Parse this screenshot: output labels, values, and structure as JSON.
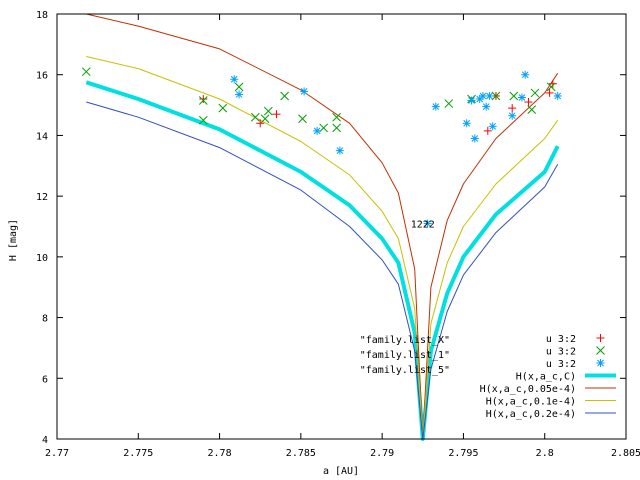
{
  "chart_data": {
    "type": "scatter",
    "title": "",
    "xlabel": "a [AU]",
    "ylabel": "H [mag]",
    "xlim": [
      2.77,
      2.805
    ],
    "ylim": [
      4,
      18
    ],
    "xticks": [
      2.77,
      2.775,
      2.78,
      2.785,
      2.79,
      2.795,
      2.8,
      2.805
    ],
    "xtick_labels": [
      "2.77",
      "2.775",
      "2.78",
      "2.785",
      "2.79",
      "2.795",
      "2.8",
      "2.805"
    ],
    "yticks": [
      4,
      6,
      8,
      10,
      12,
      14,
      16,
      18
    ],
    "ytick_labels": [
      "4",
      "6",
      "8",
      "10",
      "12",
      "14",
      "16",
      "18"
    ],
    "grid": false,
    "legend_position": "bottom-right",
    "annotations": [
      {
        "text": "1222",
        "x": 2.7925,
        "y": 11.1
      },
      {
        "text": "\"family.list_X\"",
        "x": 2.7914,
        "y": 7.3
      },
      {
        "text": "\"family.list_1\"",
        "x": 2.7914,
        "y": 6.8
      },
      {
        "text": "\"family.list_5\"",
        "x": 2.7914,
        "y": 6.3
      }
    ],
    "series": [
      {
        "name": "u 3:2",
        "kind": "points",
        "marker": "plus",
        "color": "#ff0000",
        "points": [
          [
            2.779,
            15.2
          ],
          [
            2.7825,
            14.4
          ],
          [
            2.7835,
            14.7
          ],
          [
            2.7965,
            14.15
          ],
          [
            2.798,
            14.9
          ],
          [
            2.799,
            15.1
          ],
          [
            2.8003,
            15.4
          ],
          [
            2.8005,
            15.7
          ],
          [
            2.797,
            15.3
          ]
        ]
      },
      {
        "name": "u 3:2",
        "kind": "points",
        "marker": "cross",
        "color": "#00a000",
        "points": [
          [
            2.7718,
            16.1
          ],
          [
            2.779,
            15.15
          ],
          [
            2.779,
            14.5
          ],
          [
            2.7802,
            14.9
          ],
          [
            2.7812,
            15.6
          ],
          [
            2.7822,
            14.6
          ],
          [
            2.7828,
            14.55
          ],
          [
            2.783,
            14.8
          ],
          [
            2.784,
            15.3
          ],
          [
            2.7851,
            14.55
          ],
          [
            2.7864,
            14.25
          ],
          [
            2.7872,
            14.6
          ],
          [
            2.7872,
            14.25
          ],
          [
            2.7941,
            15.05
          ],
          [
            2.7955,
            15.2
          ],
          [
            2.797,
            15.3
          ],
          [
            2.7981,
            15.3
          ],
          [
            2.7992,
            14.85
          ],
          [
            2.7994,
            15.4
          ],
          [
            2.8004,
            15.6
          ]
        ]
      },
      {
        "name": "u 3:2",
        "kind": "points",
        "marker": "star",
        "color": "#00a0ff",
        "points": [
          [
            2.7809,
            15.85
          ],
          [
            2.7812,
            15.35
          ],
          [
            2.7852,
            15.45
          ],
          [
            2.786,
            14.15
          ],
          [
            2.7874,
            13.5
          ],
          [
            2.7933,
            14.95
          ],
          [
            2.7952,
            14.4
          ],
          [
            2.7955,
            15.15
          ],
          [
            2.7957,
            13.9
          ],
          [
            2.796,
            15.2
          ],
          [
            2.7962,
            15.3
          ],
          [
            2.7964,
            14.95
          ],
          [
            2.7966,
            15.3
          ],
          [
            2.7968,
            14.3
          ],
          [
            2.798,
            14.65
          ],
          [
            2.7986,
            15.25
          ],
          [
            2.7988,
            16.0
          ],
          [
            2.8008,
            15.3
          ],
          [
            2.7928,
            11.1
          ]
        ]
      },
      {
        "name": "H(x,a_c,C)",
        "kind": "curve",
        "color": "#00e0e0",
        "width": 4,
        "points": [
          [
            2.7718,
            15.75
          ],
          [
            2.775,
            15.2
          ],
          [
            2.78,
            14.2
          ],
          [
            2.785,
            12.8
          ],
          [
            2.788,
            11.7
          ],
          [
            2.79,
            10.6
          ],
          [
            2.791,
            9.8
          ],
          [
            2.792,
            7.5
          ],
          [
            2.7925,
            4.0
          ],
          [
            2.793,
            6.9
          ],
          [
            2.794,
            8.8
          ],
          [
            2.795,
            10.0
          ],
          [
            2.797,
            11.4
          ],
          [
            2.8,
            12.8
          ],
          [
            2.8008,
            13.65
          ]
        ]
      },
      {
        "name": "H(x,a_c,0.05e-4)",
        "kind": "curve",
        "color": "#c03000",
        "width": 1,
        "points": [
          [
            2.7718,
            18.0
          ],
          [
            2.775,
            17.6
          ],
          [
            2.78,
            16.85
          ],
          [
            2.785,
            15.5
          ],
          [
            2.788,
            14.4
          ],
          [
            2.79,
            13.1
          ],
          [
            2.791,
            12.1
          ],
          [
            2.792,
            9.6
          ],
          [
            2.7925,
            4.0
          ],
          [
            2.793,
            9.0
          ],
          [
            2.794,
            11.2
          ],
          [
            2.795,
            12.4
          ],
          [
            2.797,
            13.9
          ],
          [
            2.8,
            15.4
          ],
          [
            2.8008,
            16.05
          ]
        ]
      },
      {
        "name": "H(x,a_c,0.1e-4)",
        "kind": "curve",
        "color": "#c8c000",
        "width": 1,
        "points": [
          [
            2.7718,
            16.6
          ],
          [
            2.775,
            16.2
          ],
          [
            2.78,
            15.2
          ],
          [
            2.785,
            13.8
          ],
          [
            2.788,
            12.7
          ],
          [
            2.79,
            11.5
          ],
          [
            2.791,
            10.6
          ],
          [
            2.792,
            8.3
          ],
          [
            2.7925,
            4.0
          ],
          [
            2.793,
            7.8
          ],
          [
            2.794,
            9.8
          ],
          [
            2.795,
            11.0
          ],
          [
            2.797,
            12.4
          ],
          [
            2.8,
            13.9
          ],
          [
            2.8008,
            14.5
          ]
        ]
      },
      {
        "name": "H(x,a_c,0.2e-4)",
        "kind": "curve",
        "color": "#3050c0",
        "width": 1,
        "points": [
          [
            2.7718,
            15.1
          ],
          [
            2.775,
            14.6
          ],
          [
            2.78,
            13.6
          ],
          [
            2.785,
            12.2
          ],
          [
            2.788,
            11.0
          ],
          [
            2.79,
            9.9
          ],
          [
            2.791,
            9.1
          ],
          [
            2.792,
            6.9
          ],
          [
            2.7925,
            4.0
          ],
          [
            2.793,
            6.3
          ],
          [
            2.794,
            8.2
          ],
          [
            2.795,
            9.4
          ],
          [
            2.797,
            10.8
          ],
          [
            2.8,
            12.3
          ],
          [
            2.8008,
            13.05
          ]
        ]
      }
    ]
  }
}
